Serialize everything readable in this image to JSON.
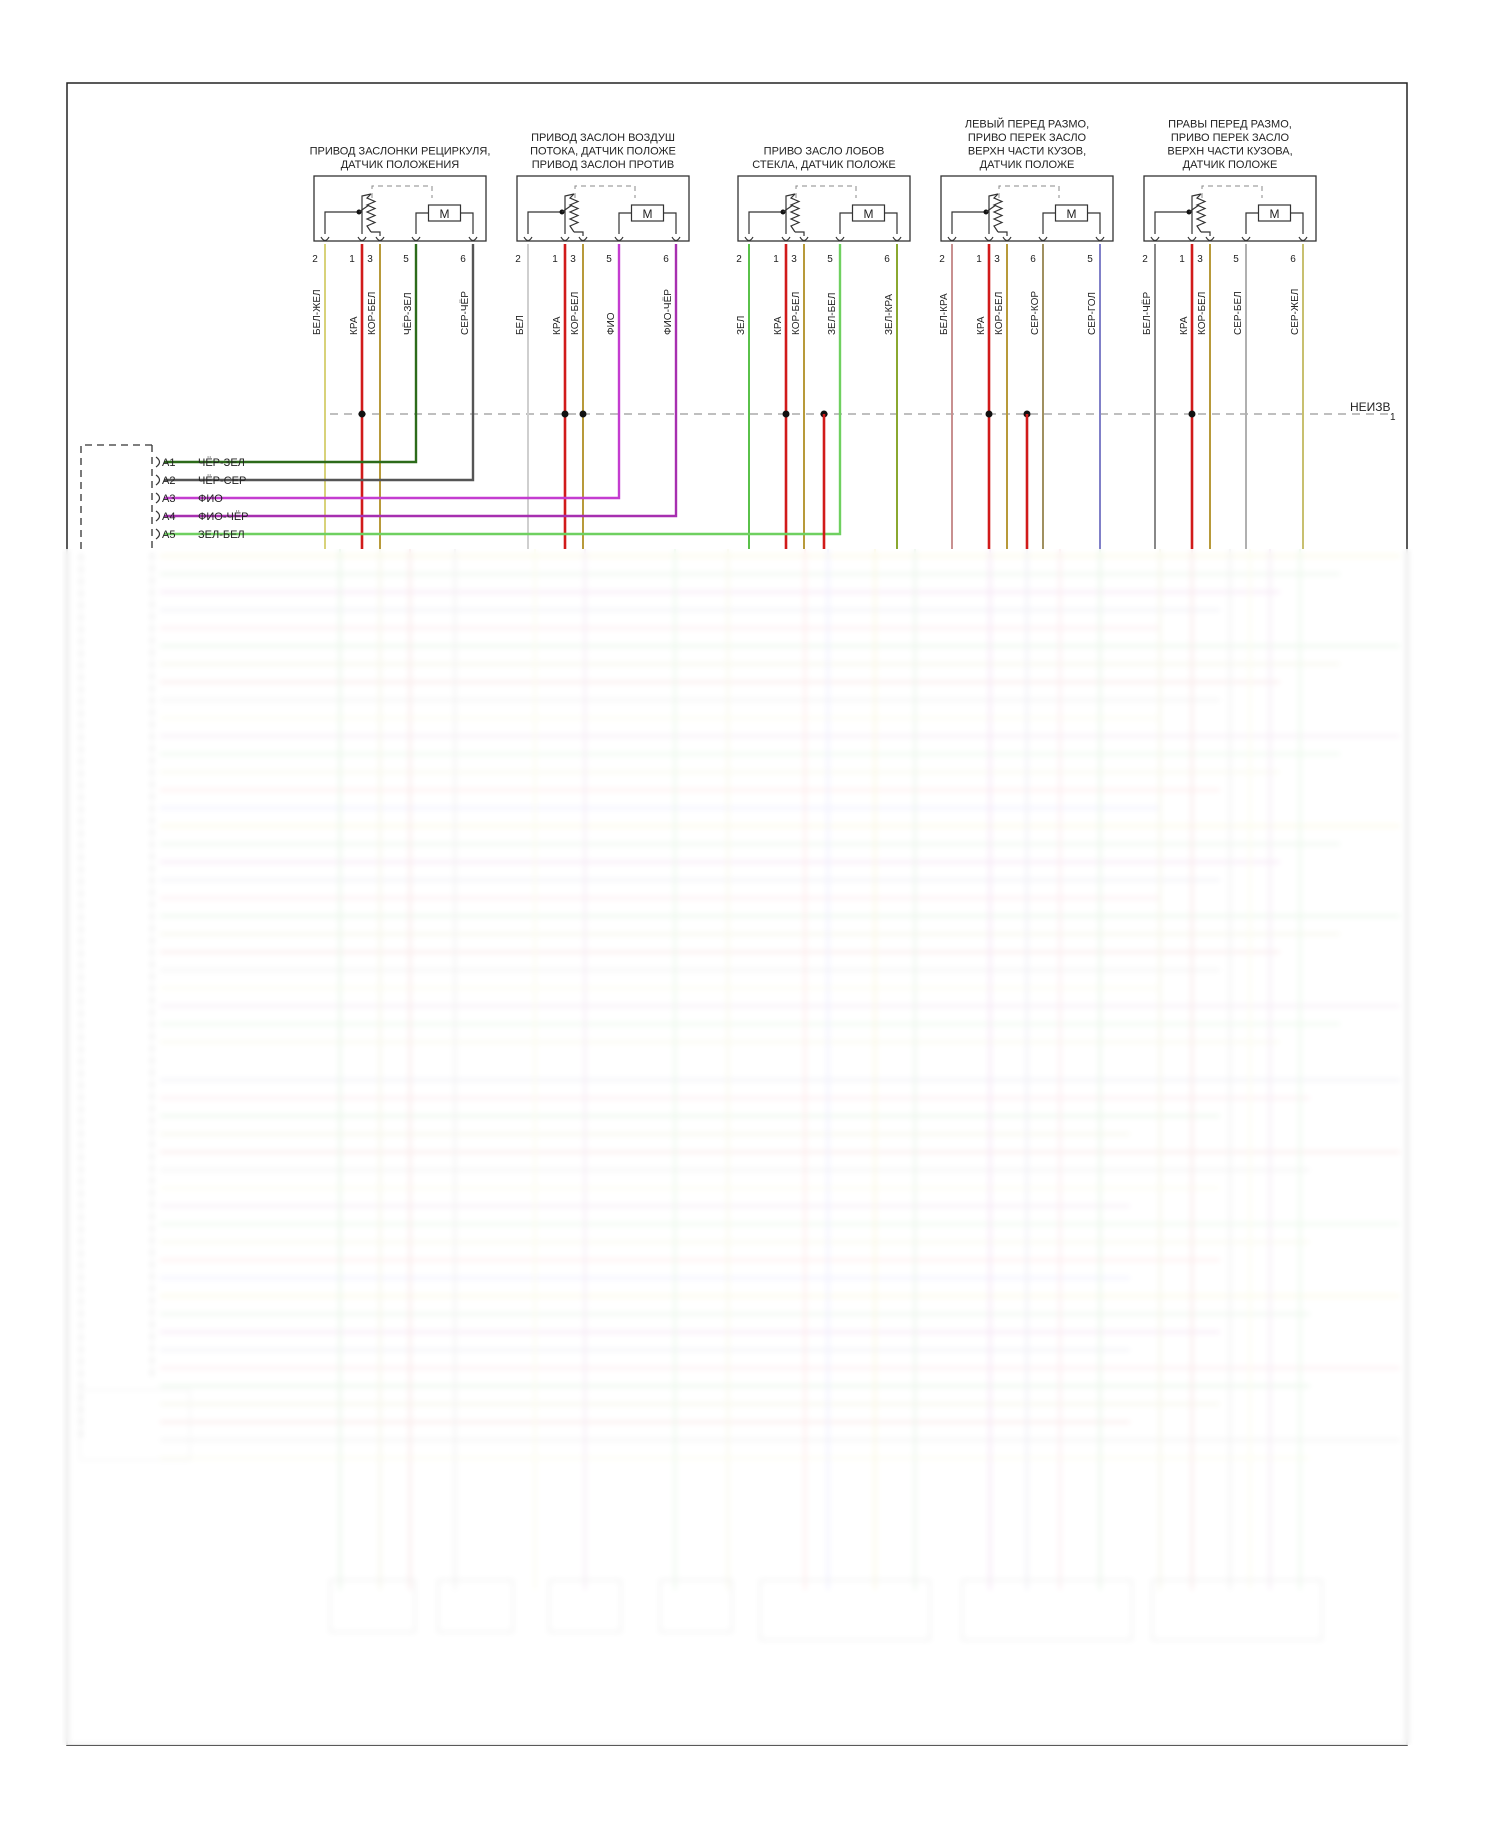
{
  "diagram": {
    "title": "",
    "ground_label": "НЕИЗВ",
    "ground_pin": "1",
    "components": [
      {
        "id": "c1",
        "title_lines": [
          "ПРИВОД ЗАСЛОНКИ РЕЦИРКУЛЯ,",
          "ДАТЧИК ПОЛОЖЕНИЯ"
        ],
        "motor_label": "M",
        "pins": [
          {
            "pin": "2",
            "wire": "БЕЛ-ЖЕЛ",
            "color": "#d8d27a"
          },
          {
            "pin": "1",
            "wire": "КРА",
            "color": "#d11a1a"
          },
          {
            "pin": "3",
            "wire": "КОР-БЕЛ",
            "color": "#b89a3a"
          },
          {
            "pin": "5",
            "wire": "ЧЁР-ЗЕЛ",
            "color": "#2c6b1a"
          },
          {
            "pin": "6",
            "wire": "СЕР-ЧЁР",
            "color": "#555555"
          }
        ]
      },
      {
        "id": "c2",
        "title_lines": [
          "ПРИВОД ЗАСЛОН ВОЗДУШ",
          "ПОТОКА, ДАТЧИК ПОЛОЖЕ",
          "ПРИВОД ЗАСЛОН ПРОТИВ"
        ],
        "motor_label": "M",
        "pins": [
          {
            "pin": "2",
            "wire": "БЕЛ",
            "color": "#cfcfcf"
          },
          {
            "pin": "1",
            "wire": "КРА",
            "color": "#d11a1a"
          },
          {
            "pin": "3",
            "wire": "КОР-БЕЛ",
            "color": "#b89a3a"
          },
          {
            "pin": "5",
            "wire": "ФИО",
            "color": "#c43dd0"
          },
          {
            "pin": "6",
            "wire": "ФИО-ЧЁР",
            "color": "#a72fb0"
          }
        ]
      },
      {
        "id": "c3",
        "title_lines": [
          "ПРИВО ЗАСЛО ЛОБОВ",
          "СТЕКЛА, ДАТЧИК ПОЛОЖЕ"
        ],
        "motor_label": "M",
        "pins": [
          {
            "pin": "2",
            "wire": "ЗЕЛ",
            "color": "#5ac14a"
          },
          {
            "pin": "1",
            "wire": "КРА",
            "color": "#d11a1a"
          },
          {
            "pin": "3",
            "wire": "КОР-БЕЛ",
            "color": "#b89a3a"
          },
          {
            "pin": "5",
            "wire": "ЗЕЛ-БЕЛ",
            "color": "#6fd060"
          },
          {
            "pin": "6",
            "wire": "ЗЕЛ-КРА",
            "color": "#8aa830"
          }
        ]
      },
      {
        "id": "c4",
        "title_lines": [
          "ЛЕВЫЙ ПЕРЕД РАЗМО,",
          "ПРИВО ПЕРЕК ЗАСЛО",
          "ВЕРХН ЧАСТИ КУЗОВ,",
          "ДАТЧИК ПОЛОЖЕ"
        ],
        "motor_label": "M",
        "pins": [
          {
            "pin": "2",
            "wire": "БЕЛ-КРА",
            "color": "#c89090"
          },
          {
            "pin": "1",
            "wire": "КРА",
            "color": "#d11a1a"
          },
          {
            "pin": "3",
            "wire": "КОР-БЕЛ",
            "color": "#b89a3a"
          },
          {
            "pin": "6",
            "wire": "СЕР-КОР",
            "color": "#a09060"
          },
          {
            "pin": "5",
            "wire": "СЕР-ГОЛ",
            "color": "#8080c8"
          }
        ]
      },
      {
        "id": "c5",
        "title_lines": [
          "ПРАВЫ ПЕРЕД РАЗМО,",
          "ПРИВО ПЕРЕК ЗАСЛО",
          "ВЕРХН ЧАСТИ КУЗОВА,",
          "ДАТЧИК ПОЛОЖЕ"
        ],
        "motor_label": "M",
        "pins": [
          {
            "pin": "2",
            "wire": "БЕЛ-ЧЁР",
            "color": "#888888"
          },
          {
            "pin": "1",
            "wire": "КРА",
            "color": "#d11a1a"
          },
          {
            "pin": "3",
            "wire": "КОР-БЕЛ",
            "color": "#b89a3a"
          },
          {
            "pin": "5",
            "wire": "СЕР-БЕЛ",
            "color": "#b0b0b0"
          },
          {
            "pin": "6",
            "wire": "СЕР-ЖЕЛ",
            "color": "#c8c070"
          }
        ]
      }
    ],
    "connector_pins": [
      {
        "pin": "A1",
        "wire": "ЧЁР-ЗЕЛ",
        "color": "#2c6b1a"
      },
      {
        "pin": "A2",
        "wire": "ЧЁР-СЕР",
        "color": "#3a3a3a"
      },
      {
        "pin": "A3",
        "wire": "ФИО",
        "color": "#c43dd0"
      },
      {
        "pin": "A4",
        "wire": "ФИО-ЧЁР",
        "color": "#a72fb0"
      },
      {
        "pin": "A5",
        "wire": "ЗЕЛ-БЕЛ",
        "color": "#6fd060"
      }
    ]
  }
}
